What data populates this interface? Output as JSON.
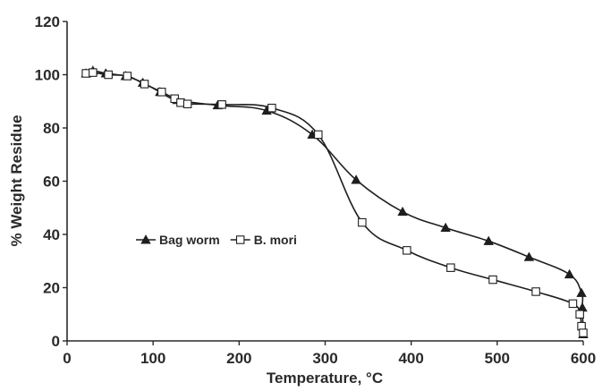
{
  "chart_data": {
    "type": "line",
    "title": "",
    "xlabel": "Temperature, °C",
    "ylabel": "% Weight Residue",
    "xlim": [
      0,
      600
    ],
    "ylim": [
      0,
      120
    ],
    "xticks": [
      0,
      100,
      200,
      300,
      400,
      500,
      600
    ],
    "yticks": [
      0,
      20,
      40,
      60,
      80,
      100,
      120
    ],
    "xtick_labels": [
      "0",
      "100",
      "200",
      "300",
      "400",
      "500",
      "600"
    ],
    "ytick_labels": [
      "0",
      "20",
      "40",
      "60",
      "80",
      "100",
      "120"
    ],
    "grid": false,
    "legend": {
      "placement": "center-left"
    },
    "series": [
      {
        "name": "Bag worm",
        "marker": "filled-triangle",
        "color": "#1e1e1e",
        "points": [
          [
            22,
            100.5
          ],
          [
            30,
            101.5
          ],
          [
            45,
            100.5
          ],
          [
            68,
            99.5
          ],
          [
            88,
            97
          ],
          [
            108,
            93.5
          ],
          [
            128,
            90.5
          ],
          [
            175,
            88.5
          ],
          [
            232,
            86.5
          ],
          [
            285,
            77.5
          ],
          [
            336,
            60.5
          ],
          [
            390,
            48.5
          ],
          [
            440,
            42.5
          ],
          [
            490,
            37.5
          ],
          [
            537,
            31.5
          ],
          [
            584,
            25
          ],
          [
            598,
            18
          ],
          [
            599,
            12.5
          ],
          [
            600,
            2.5
          ]
        ]
      },
      {
        "name": "B. mori",
        "marker": "open-square",
        "color": "#1e1e1e",
        "points": [
          [
            22,
            100.5
          ],
          [
            30,
            100.8
          ],
          [
            48,
            100
          ],
          [
            70,
            99.5
          ],
          [
            90,
            96.5
          ],
          [
            110,
            93.5
          ],
          [
            125,
            91
          ],
          [
            132,
            89.5
          ],
          [
            140,
            89
          ],
          [
            180,
            88.8
          ],
          [
            238,
            87.5
          ],
          [
            292,
            77.5
          ],
          [
            343,
            44.5
          ],
          [
            395,
            34
          ],
          [
            446,
            27.5
          ],
          [
            495,
            23
          ],
          [
            545,
            18.5
          ],
          [
            588,
            14
          ],
          [
            596,
            10
          ],
          [
            598,
            5.5
          ],
          [
            600,
            3
          ]
        ]
      }
    ]
  }
}
